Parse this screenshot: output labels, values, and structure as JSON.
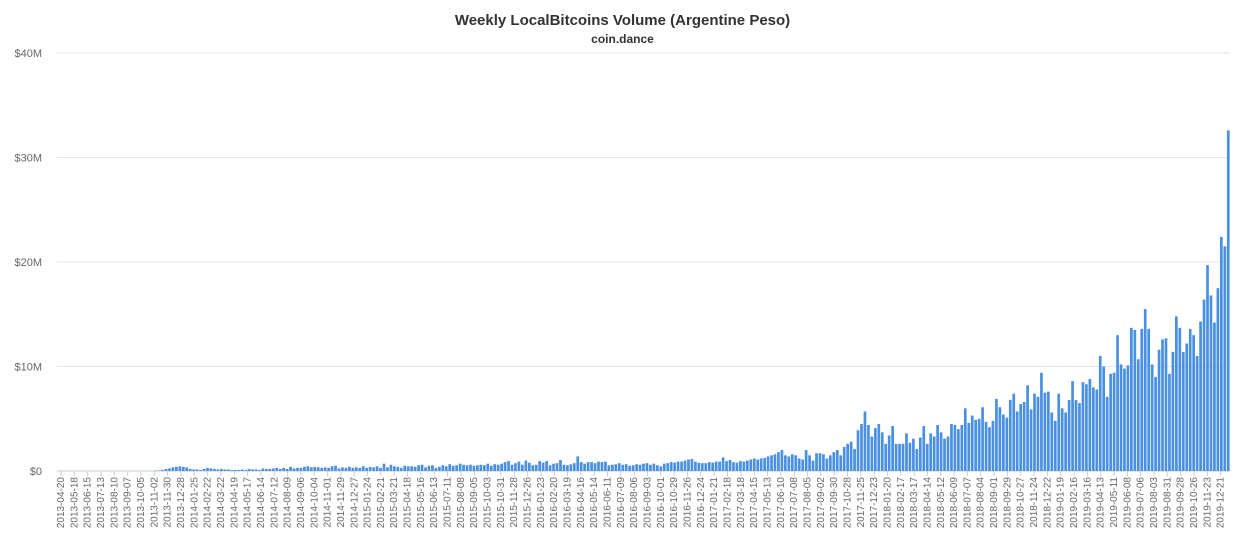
{
  "chart_data": {
    "type": "bar",
    "title": "Weekly LocalBitcoins Volume (Argentine Peso)",
    "subtitle": "coin.dance",
    "xlabel": "",
    "ylabel": "",
    "ylim": [
      0,
      40000000
    ],
    "grid": true,
    "bar_color": "#4a90e2",
    "y_ticks": [
      {
        "value": 0,
        "label": "$0"
      },
      {
        "value": 10000000,
        "label": "$10M"
      },
      {
        "value": 20000000,
        "label": "$20M"
      },
      {
        "value": 30000000,
        "label": "$30M"
      },
      {
        "value": 40000000,
        "label": "$40M"
      }
    ],
    "x_tick_labels": [
      "2013-04-20",
      "2013-05-18",
      "2013-06-15",
      "2013-07-13",
      "2013-08-10",
      "2013-09-07",
      "2013-10-05",
      "2013-11-02",
      "2013-11-30",
      "2013-12-28",
      "2014-01-25",
      "2014-02-22",
      "2014-03-22",
      "2014-04-19",
      "2014-05-17",
      "2014-06-14",
      "2014-07-12",
      "2014-08-09",
      "2014-09-06",
      "2014-10-04",
      "2014-11-01",
      "2014-11-29",
      "2014-12-27",
      "2015-01-24",
      "2015-02-21",
      "2015-03-21",
      "2015-04-18",
      "2015-05-16",
      "2015-06-13",
      "2015-07-11",
      "2015-08-08",
      "2015-09-05",
      "2015-10-03",
      "2015-10-31",
      "2015-11-28",
      "2015-12-26",
      "2016-01-23",
      "2016-02-20",
      "2016-03-19",
      "2016-04-16",
      "2016-05-14",
      "2016-06-11",
      "2016-07-09",
      "2016-08-06",
      "2016-09-03",
      "2016-10-01",
      "2016-10-29",
      "2016-11-26",
      "2016-12-24",
      "2017-01-21",
      "2017-02-18",
      "2017-03-18",
      "2017-04-15",
      "2017-05-13",
      "2017-06-10",
      "2017-07-08",
      "2017-08-05",
      "2017-09-02",
      "2017-09-30",
      "2017-10-28",
      "2017-11-25",
      "2017-12-23",
      "2018-01-20",
      "2018-02-17",
      "2018-03-17",
      "2018-04-14",
      "2018-05-12",
      "2018-06-09",
      "2018-07-07",
      "2018-08-04",
      "2018-09-01",
      "2018-09-29",
      "2018-10-27",
      "2018-11-24",
      "2018-12-22",
      "2019-01-19",
      "2019-02-16",
      "2019-03-16",
      "2019-04-13",
      "2019-05-11",
      "2019-06-08",
      "2019-07-06",
      "2019-08-03",
      "2019-08-31",
      "2019-09-28",
      "2019-10-26",
      "2019-11-23",
      "2019-12-21"
    ],
    "series": [
      {
        "values_millions": [
          0,
          0,
          0,
          0,
          0,
          0,
          0,
          0,
          0,
          0,
          0,
          0,
          0,
          0,
          0,
          0,
          0,
          0,
          0,
          0,
          0,
          0,
          0,
          0,
          0,
          0,
          0,
          0,
          0.05,
          0.05,
          0.1,
          0.2,
          0.25,
          0.35,
          0.4,
          0.45,
          0.4,
          0.35,
          0.2,
          0.15,
          0.15,
          0.1,
          0.2,
          0.3,
          0.25,
          0.2,
          0.15,
          0.2,
          0.15,
          0.15,
          0.1,
          0.1,
          0.1,
          0.15,
          0.1,
          0.2,
          0.15,
          0.15,
          0.1,
          0.25,
          0.2,
          0.2,
          0.25,
          0.3,
          0.2,
          0.3,
          0.2,
          0.4,
          0.25,
          0.3,
          0.3,
          0.4,
          0.45,
          0.35,
          0.4,
          0.35,
          0.3,
          0.35,
          0.3,
          0.45,
          0.5,
          0.25,
          0.35,
          0.3,
          0.4,
          0.3,
          0.35,
          0.3,
          0.45,
          0.3,
          0.4,
          0.35,
          0.45,
          0.3,
          0.7,
          0.35,
          0.6,
          0.45,
          0.4,
          0.3,
          0.5,
          0.45,
          0.45,
          0.4,
          0.55,
          0.6,
          0.35,
          0.5,
          0.55,
          0.3,
          0.4,
          0.55,
          0.45,
          0.65,
          0.5,
          0.55,
          0.7,
          0.6,
          0.55,
          0.6,
          0.5,
          0.55,
          0.6,
          0.55,
          0.7,
          0.5,
          0.65,
          0.6,
          0.7,
          0.85,
          0.95,
          0.6,
          0.75,
          0.9,
          0.6,
          1.0,
          0.8,
          0.55,
          0.6,
          0.95,
          0.8,
          0.95,
          0.55,
          0.7,
          0.75,
          1.05,
          0.6,
          0.55,
          0.65,
          0.75,
          1.4,
          0.85,
          0.7,
          0.85,
          0.85,
          0.75,
          0.9,
          0.85,
          0.9,
          0.55,
          0.6,
          0.65,
          0.75,
          0.6,
          0.65,
          0.5,
          0.55,
          0.65,
          0.6,
          0.7,
          0.75,
          0.6,
          0.7,
          0.55,
          0.45,
          0.7,
          0.75,
          0.85,
          0.8,
          0.9,
          0.9,
          1.0,
          1.1,
          1.15,
          0.9,
          0.8,
          0.75,
          0.75,
          0.85,
          0.8,
          0.9,
          0.9,
          1.3,
          0.95,
          1.05,
          0.85,
          0.8,
          0.95,
          0.9,
          1.0,
          1.1,
          1.2,
          1.1,
          1.2,
          1.25,
          1.4,
          1.5,
          1.6,
          1.8,
          2.0,
          1.5,
          1.4,
          1.6,
          1.5,
          1.2,
          1.1,
          2.0,
          1.5,
          1.0,
          1.7,
          1.7,
          1.6,
          1.2,
          1.5,
          1.8,
          2.0,
          1.5,
          2.3,
          2.6,
          2.8,
          2.1,
          3.9,
          4.5,
          5.7,
          4.4,
          3.3,
          4.1,
          4.5,
          3.7,
          2.6,
          3.4,
          4.3,
          2.6,
          2.6,
          2.6,
          3.6,
          2.7,
          3.1,
          2.1,
          3.2,
          4.3,
          2.6,
          3.6,
          3.3,
          4.4,
          3.7,
          3.1,
          3.3,
          4.5,
          4.4,
          4.0,
          4.4,
          6.0,
          4.6,
          5.3,
          4.9,
          5.0,
          6.1,
          4.7,
          4.2,
          4.8,
          6.9,
          6.1,
          5.4,
          5.1,
          6.8,
          7.4,
          5.7,
          6.4,
          6.6,
          8.2,
          5.9,
          7.4,
          7.1,
          9.4,
          7.5,
          7.6,
          5.6,
          4.8,
          7.4,
          6.0,
          5.6,
          6.8,
          8.6,
          6.8,
          6.5,
          8.5,
          8.3,
          8.8,
          8.0,
          7.8,
          11.0,
          10.0,
          7.1,
          9.3,
          9.4,
          13.0,
          10.2,
          9.8,
          10.1,
          13.7,
          13.5,
          10.7,
          13.6,
          15.5,
          13.6,
          10.2,
          9.0,
          11.6,
          12.6,
          12.7,
          9.3,
          11.4,
          14.8,
          13.7,
          11.4,
          12.2,
          13.6,
          13.0,
          11.0,
          14.3,
          16.4,
          19.7,
          16.8,
          14.2,
          17.5,
          22.4,
          21.5,
          32.6
        ]
      }
    ]
  }
}
